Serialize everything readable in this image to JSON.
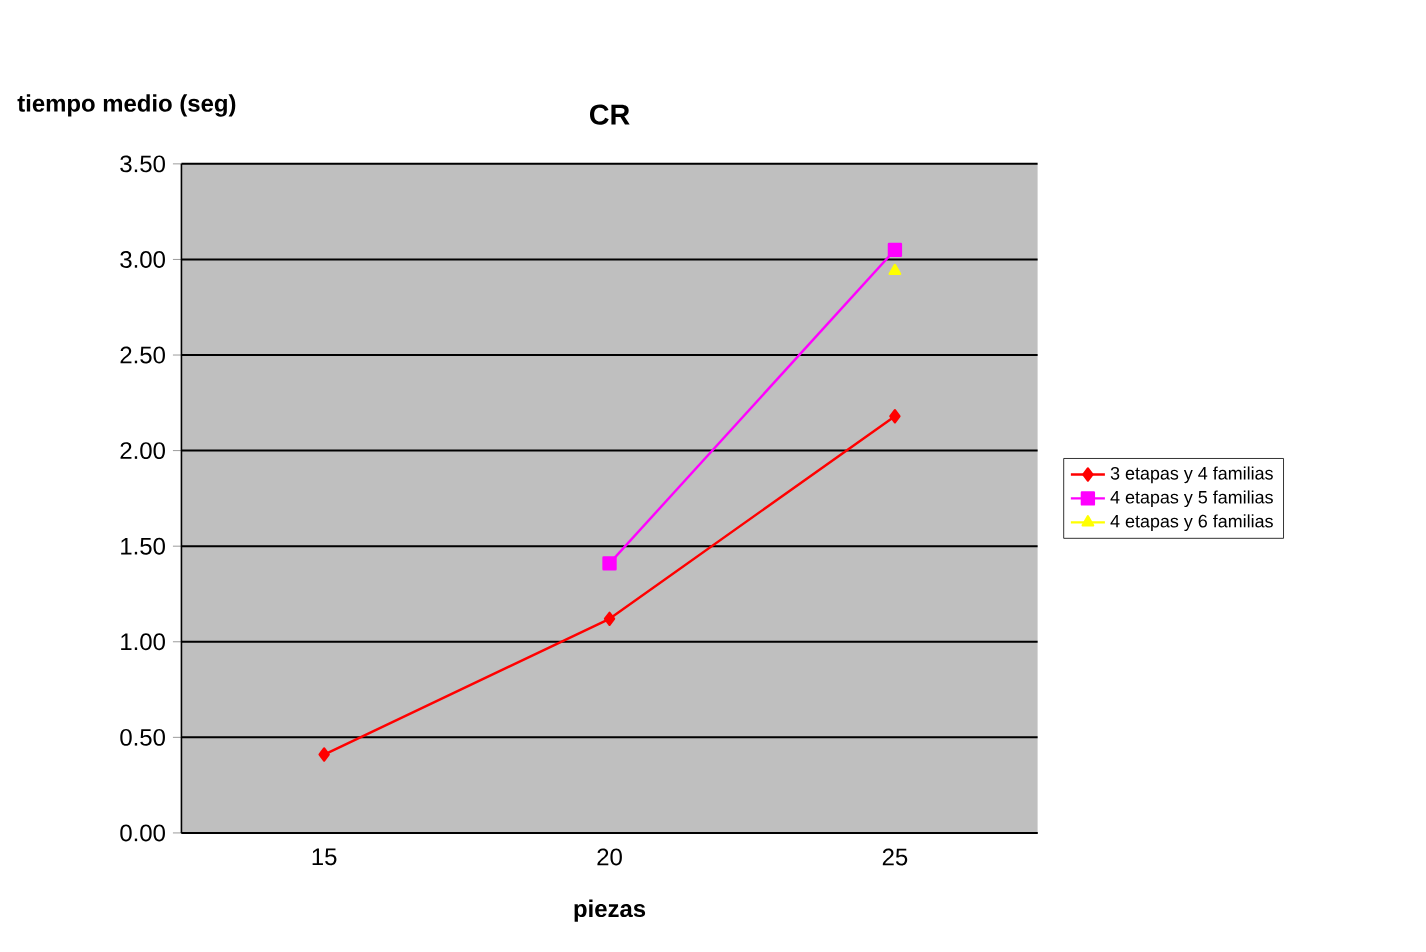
{
  "chart_data": {
    "type": "line",
    "title": "CR",
    "xlabel": "piezas",
    "ylabel": "tiempo medio (seg)",
    "categories": [
      "15",
      "20",
      "25"
    ],
    "series": [
      {
        "name": "3 etapas y 4 familias",
        "color": "#ff0000",
        "values": [
          0.41,
          1.12,
          2.18
        ],
        "marker": "diamond"
      },
      {
        "name": "4 etapas y 5 familias",
        "color": "#ff00ff",
        "values": [
          null,
          1.41,
          3.05
        ],
        "marker": "square"
      },
      {
        "name": "4 etapas y 6 familias",
        "color": "#ffff00",
        "values": [
          null,
          null,
          2.94
        ],
        "marker": "triangle"
      }
    ],
    "ylim": [
      0,
      3.5
    ],
    "yticks": [
      {
        "value": 0,
        "label": "0.00"
      },
      {
        "value": 0.5,
        "label": "0.50"
      },
      {
        "value": 1,
        "label": "1.00"
      },
      {
        "value": 1.5,
        "label": "1.50"
      },
      {
        "value": 2,
        "label": "2.00"
      },
      {
        "value": 2.5,
        "label": "2.50"
      },
      {
        "value": 3,
        "label": "3.00"
      },
      {
        "value": 3.5,
        "label": "3.50"
      }
    ],
    "grid": "y",
    "legend": "right",
    "line_style": "solid"
  }
}
